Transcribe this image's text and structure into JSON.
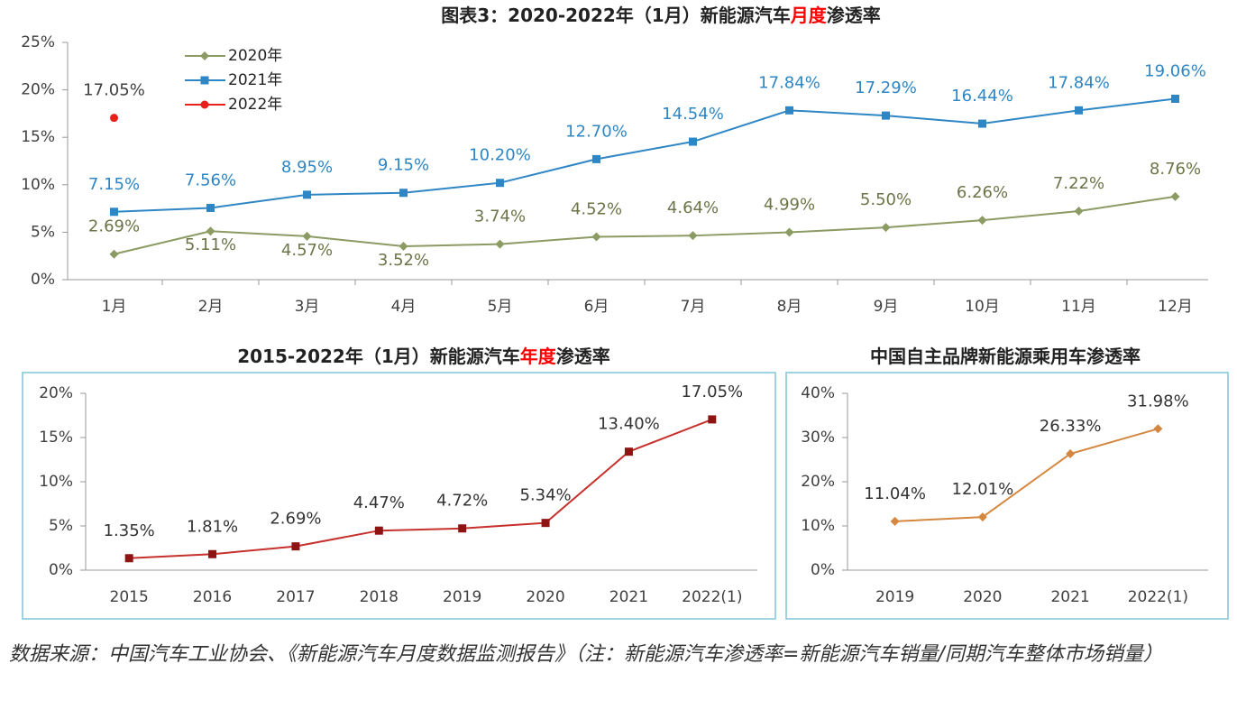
{
  "chart_data": [
    {
      "type": "line",
      "title": [
        "图表3：2020-2022年（1月）新能源汽车",
        "月度",
        "渗透率"
      ],
      "title_highlight": 1,
      "title_highlight_color": "#ff0000",
      "categories": [
        "1月",
        "2月",
        "3月",
        "4月",
        "5月",
        "6月",
        "7月",
        "8月",
        "9月",
        "10月",
        "11月",
        "12月"
      ],
      "series": [
        {
          "name": "2020年",
          "color": "#8c9a63",
          "label_color": "#6b7548",
          "marker": "diamond",
          "values": [
            2.69,
            5.11,
            4.57,
            3.52,
            3.74,
            4.52,
            4.64,
            4.99,
            5.5,
            6.26,
            7.22,
            8.76
          ],
          "value_labels": [
            "2.69%",
            "5.11%",
            "4.57%",
            "3.52%",
            "3.74%",
            "4.52%",
            "4.64%",
            "4.99%",
            "5.50%",
            "6.26%",
            "7.22%",
            "8.76%"
          ]
        },
        {
          "name": "2021年",
          "color": "#2f86c4",
          "label_color": "#2f86c4",
          "marker": "square",
          "values": [
            7.15,
            7.56,
            8.95,
            9.15,
            10.2,
            12.7,
            14.54,
            17.84,
            17.29,
            16.44,
            17.84,
            19.06
          ],
          "value_labels": [
            "7.15%",
            "7.56%",
            "8.95%",
            "9.15%",
            "10.20%",
            "12.70%",
            "14.54%",
            "17.84%",
            "17.29%",
            "16.44%",
            "17.84%",
            "19.06%"
          ]
        },
        {
          "name": "2022年",
          "color": "#e8201c",
          "label_color": "#404040",
          "marker": "circle",
          "values": [
            17.05,
            null,
            null,
            null,
            null,
            null,
            null,
            null,
            null,
            null,
            null,
            null
          ],
          "value_labels": [
            "17.05%",
            null,
            null,
            null,
            null,
            null,
            null,
            null,
            null,
            null,
            null,
            null
          ]
        }
      ],
      "ylim": [
        0,
        25
      ],
      "yticks": [
        {
          "value": 0,
          "label": "0%"
        },
        {
          "value": 5,
          "label": "5%"
        },
        {
          "value": 10,
          "label": "10%"
        },
        {
          "value": 15,
          "label": "15%"
        },
        {
          "value": 20,
          "label": "20%"
        },
        {
          "value": 25,
          "label": "25%"
        }
      ],
      "legend": "upper left"
    },
    {
      "type": "line",
      "title": [
        "2015-2022年（1月）新能源汽车",
        "年度",
        "渗透率"
      ],
      "title_highlight": 1,
      "title_highlight_color": "#ff0000",
      "categories": [
        "2015",
        "2016",
        "2017",
        "2018",
        "2019",
        "2020",
        "2021",
        "2022(1)"
      ],
      "series": [
        {
          "color": "#c6312d",
          "marker_color": "#8e1414",
          "label_color": "#333333",
          "marker": "square",
          "values": [
            1.35,
            1.81,
            2.69,
            4.47,
            4.72,
            5.34,
            13.4,
            17.05
          ],
          "value_labels": [
            "1.35%",
            "1.81%",
            "2.69%",
            "4.47%",
            "4.72%",
            "5.34%",
            "13.40%",
            "17.05%"
          ]
        }
      ],
      "ylim": [
        0,
        20
      ],
      "yticks": [
        {
          "value": 0,
          "label": "0%"
        },
        {
          "value": 5,
          "label": "5%"
        },
        {
          "value": 10,
          "label": "10%"
        },
        {
          "value": 15,
          "label": "15%"
        },
        {
          "value": 20,
          "label": "20%"
        }
      ]
    },
    {
      "type": "line",
      "title": [
        "中国自主品牌新能源乘用车渗透率"
      ],
      "categories": [
        "2019",
        "2020",
        "2021",
        "2022(1)"
      ],
      "series": [
        {
          "color": "#d4873f",
          "label_color": "#333333",
          "marker": "diamond",
          "values": [
            11.04,
            12.01,
            26.33,
            31.98
          ],
          "value_labels": [
            "11.04%",
            "12.01%",
            "26.33%",
            "31.98%"
          ]
        }
      ],
      "ylim": [
        0,
        40
      ],
      "yticks": [
        {
          "value": 0,
          "label": "0%"
        },
        {
          "value": 10,
          "label": "10%"
        },
        {
          "value": 20,
          "label": "20%"
        },
        {
          "value": 30,
          "label": "30%"
        },
        {
          "value": 40,
          "label": "40%"
        }
      ]
    }
  ],
  "source": "数据来源：中国汽车工业协会、《新能源汽车月度数据监测报告》（注：新能源汽车渗透率=新能源汽车销量/同期汽车整体市场销量）"
}
